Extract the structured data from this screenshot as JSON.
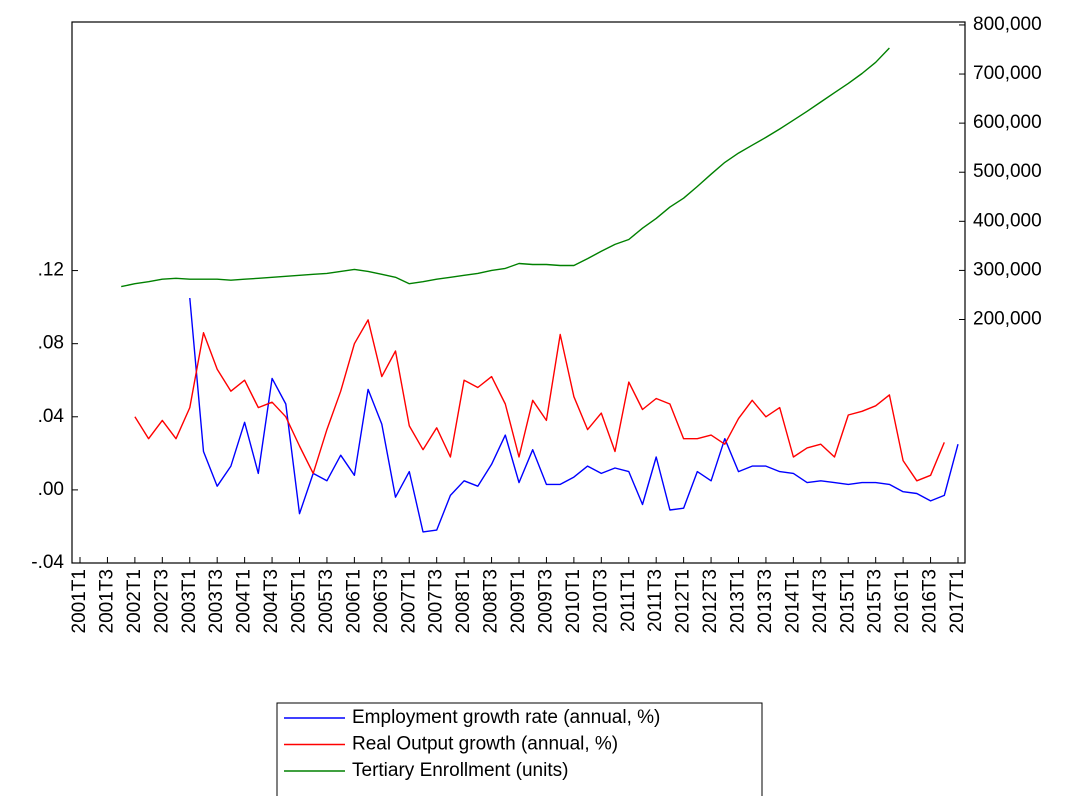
{
  "chart_data": {
    "type": "line",
    "categories": [
      "2001T1",
      null,
      "2001T3",
      null,
      "2002T1",
      null,
      "2002T3",
      null,
      "2003T1",
      null,
      "2003T3",
      null,
      "2004T1",
      null,
      "2004T3",
      null,
      "2005T1",
      null,
      "2005T3",
      null,
      "2006T1",
      null,
      "2006T3",
      null,
      "2007T1",
      null,
      "2007T3",
      null,
      "2008T1",
      null,
      "2008T3",
      null,
      "2009T1",
      null,
      "2009T3",
      null,
      "2010T1",
      null,
      "2010T3",
      null,
      "2011T1",
      null,
      "2011T3",
      null,
      "2012T1",
      null,
      "2012T3",
      null,
      "2013T1",
      null,
      "2013T3",
      null,
      "2014T1",
      null,
      "2014T3",
      null,
      "2015T1",
      null,
      "2015T3",
      null,
      "2016T1",
      null,
      "2016T3",
      null,
      "2017T1"
    ],
    "series": [
      {
        "name": "Employment growth rate (annual, %)",
        "color": "#0000ff",
        "axis": "y",
        "values": [
          null,
          null,
          null,
          null,
          null,
          null,
          null,
          null,
          0.105,
          0.021,
          0.002,
          0.013,
          0.037,
          0.009,
          0.061,
          0.047,
          -0.013,
          0.009,
          0.005,
          0.019,
          0.008,
          0.055,
          0.036,
          -0.004,
          0.01,
          -0.023,
          -0.022,
          -0.003,
          0.005,
          0.002,
          0.014,
          0.03,
          0.004,
          0.022,
          0.003,
          0.003,
          0.007,
          0.013,
          0.009,
          0.012,
          0.01,
          -0.008,
          0.018,
          -0.011,
          -0.01,
          0.01,
          0.005,
          0.028,
          0.01,
          0.013,
          0.013,
          0.01,
          0.009,
          0.004,
          0.005,
          0.004,
          0.003,
          0.004,
          0.004,
          0.003,
          -0.001,
          -0.002,
          -0.006,
          -0.003,
          0.025
        ]
      },
      {
        "name": "Real Output growth (annual, %)",
        "color": "#ff0000",
        "axis": "y",
        "values": [
          null,
          null,
          null,
          null,
          0.04,
          0.028,
          0.038,
          0.028,
          0.045,
          0.086,
          0.066,
          0.054,
          0.06,
          0.045,
          0.048,
          0.04,
          0.024,
          0.009,
          0.033,
          0.054,
          0.08,
          0.093,
          0.062,
          0.076,
          0.035,
          0.022,
          0.034,
          0.018,
          0.06,
          0.056,
          0.062,
          0.047,
          0.018,
          0.049,
          0.038,
          0.085,
          0.051,
          0.033,
          0.042,
          0.021,
          0.059,
          0.044,
          0.05,
          0.047,
          0.028,
          0.028,
          0.03,
          0.025,
          0.039,
          0.049,
          0.04,
          0.045,
          0.018,
          0.023,
          0.025,
          0.018,
          0.041,
          0.043,
          0.046,
          0.052,
          0.016,
          0.005,
          0.008,
          0.026,
          null
        ]
      },
      {
        "name": "Tertiary Enrollment (units)",
        "color": "#008000",
        "axis": "y2",
        "values": [
          null,
          null,
          null,
          267000,
          273000,
          277000,
          282000,
          284000,
          282000,
          282000,
          282000,
          280000,
          282000,
          284000,
          286000,
          288000,
          290000,
          292000,
          294000,
          298000,
          302000,
          298000,
          292000,
          286000,
          273000,
          277000,
          282000,
          286000,
          290000,
          294000,
          300000,
          304000,
          314000,
          312000,
          312000,
          310000,
          310000,
          324000,
          339000,
          353000,
          363000,
          386000,
          406000,
          429000,
          447000,
          471000,
          496000,
          520000,
          539000,
          555000,
          571000,
          588000,
          606000,
          624000,
          643000,
          662000,
          681000,
          701000,
          724000,
          753000,
          null,
          null,
          null,
          null,
          null
        ]
      }
    ],
    "ylim": [
      -0.04,
      0.256
    ],
    "yticks": [
      {
        "value": -0.04,
        "label": "-.04"
      },
      {
        "value": 0,
        "label": ".00"
      },
      {
        "value": 0.04,
        "label": ".04"
      },
      {
        "value": 0.08,
        "label": ".08"
      },
      {
        "value": 0.12,
        "label": ".12"
      }
    ],
    "y2lim": [
      -296000,
      806000
    ],
    "y2ticks": [
      {
        "value": 200000,
        "label": "200,000"
      },
      {
        "value": 300000,
        "label": "300,000"
      },
      {
        "value": 400000,
        "label": "400,000"
      },
      {
        "value": 500000,
        "label": "500,000"
      },
      {
        "value": 600000,
        "label": "600,000"
      },
      {
        "value": 700000,
        "label": "700,000"
      },
      {
        "value": 800000,
        "label": "800,000"
      }
    ],
    "grid": false,
    "legend": "bottom"
  }
}
